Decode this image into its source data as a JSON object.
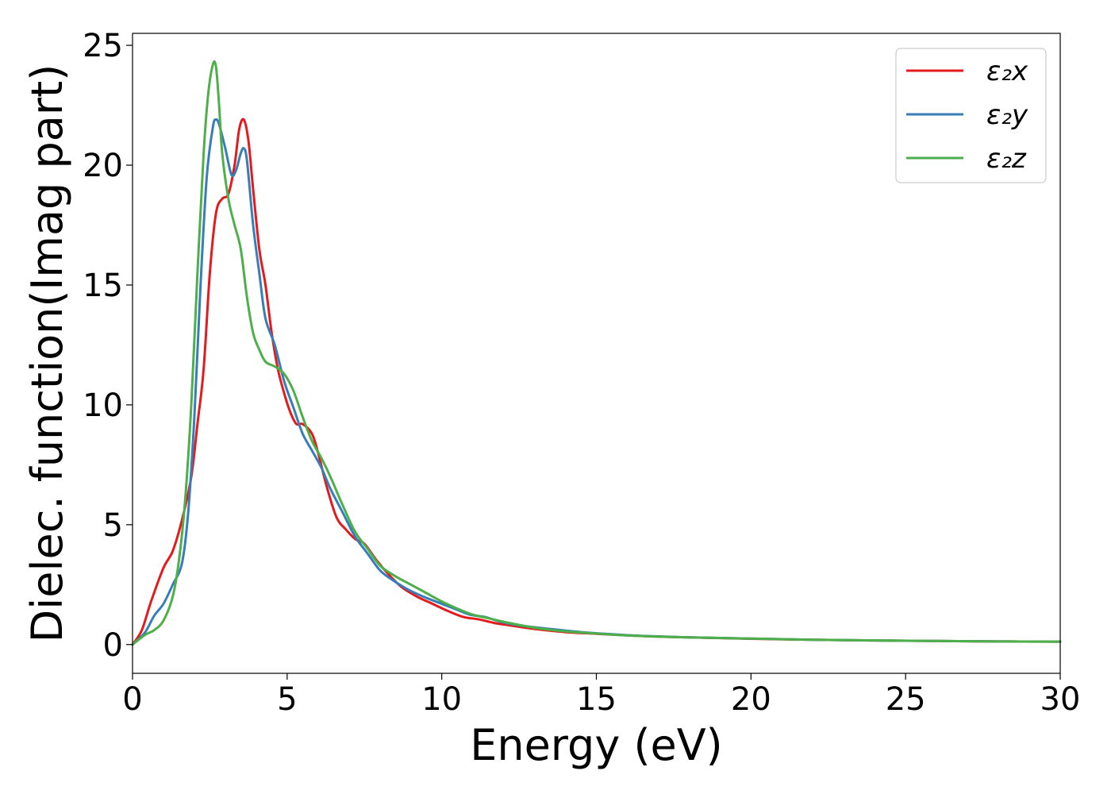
{
  "chart_data": {
    "type": "line",
    "title": "",
    "xlabel": "Energy (eV)",
    "ylabel": "Dielec. function(Imag part)",
    "xlim": [
      0,
      30
    ],
    "ylim": [
      -1.2,
      25.5
    ],
    "xticks": [
      0,
      5,
      10,
      15,
      20,
      25,
      30
    ],
    "yticks": [
      0,
      5,
      10,
      15,
      20,
      25
    ],
    "grid": false,
    "legend_position": "top-right",
    "series": [
      {
        "name": "ε₂x",
        "color": "#e41a1c",
        "x": [
          0,
          0.3,
          0.6,
          1.0,
          1.3,
          1.6,
          1.9,
          2.1,
          2.3,
          2.5,
          2.7,
          2.9,
          3.1,
          3.3,
          3.45,
          3.6,
          3.75,
          3.9,
          4.1,
          4.3,
          4.5,
          4.7,
          4.9,
          5.1,
          5.3,
          5.5,
          5.8,
          6.0,
          6.3,
          6.6,
          6.9,
          7.2,
          7.5,
          7.9,
          8.3,
          8.7,
          9.2,
          9.7,
          10.2,
          10.7,
          11.2,
          11.7,
          12.2,
          13.0,
          14.0,
          15.0,
          16.0,
          17.0,
          18.0,
          19.0,
          20.0,
          22.0,
          24.0,
          26.0,
          28.0,
          30.0
        ],
        "values": [
          0,
          0.6,
          1.8,
          3.2,
          3.9,
          5.2,
          7.0,
          9.2,
          11.5,
          15.5,
          18.0,
          18.6,
          18.8,
          20.0,
          21.5,
          21.9,
          21.0,
          19.0,
          16.5,
          15.0,
          13.0,
          11.5,
          10.5,
          9.7,
          9.2,
          9.2,
          8.8,
          8.0,
          6.5,
          5.3,
          4.8,
          4.4,
          4.2,
          3.5,
          2.9,
          2.4,
          2.0,
          1.7,
          1.4,
          1.15,
          1.05,
          0.9,
          0.8,
          0.65,
          0.52,
          0.45,
          0.38,
          0.33,
          0.3,
          0.27,
          0.24,
          0.2,
          0.17,
          0.15,
          0.13,
          0.12
        ]
      },
      {
        "name": "ε₂y",
        "color": "#377eb8",
        "x": [
          0,
          0.4,
          0.7,
          1.0,
          1.3,
          1.6,
          1.8,
          2.0,
          2.2,
          2.4,
          2.6,
          2.7,
          2.8,
          3.0,
          3.2,
          3.35,
          3.5,
          3.6,
          3.7,
          3.9,
          4.1,
          4.3,
          4.6,
          4.9,
          5.2,
          5.5,
          5.8,
          6.1,
          6.4,
          6.8,
          7.2,
          7.6,
          8.0,
          8.4,
          8.9,
          9.4,
          9.9,
          10.4,
          10.9,
          11.4,
          11.9,
          12.5,
          13.5,
          14.5,
          15.5,
          16.5,
          18.0,
          20.0,
          22.0,
          24.0,
          26.0,
          28.0,
          30.0
        ],
        "values": [
          0,
          0.5,
          1.2,
          1.7,
          2.5,
          3.4,
          5.5,
          9.5,
          15.0,
          19.5,
          21.6,
          21.9,
          21.7,
          20.7,
          19.6,
          19.8,
          20.5,
          20.7,
          20.2,
          17.5,
          15.5,
          13.6,
          12.5,
          11.0,
          9.9,
          8.8,
          8.1,
          7.4,
          6.5,
          5.5,
          4.5,
          3.8,
          3.1,
          2.7,
          2.3,
          2.0,
          1.75,
          1.5,
          1.25,
          1.15,
          0.95,
          0.8,
          0.65,
          0.52,
          0.43,
          0.36,
          0.3,
          0.25,
          0.2,
          0.17,
          0.15,
          0.13,
          0.12
        ]
      },
      {
        "name": "ε₂z",
        "color": "#4daf4a",
        "x": [
          0,
          0.4,
          0.7,
          1.0,
          1.3,
          1.5,
          1.7,
          1.9,
          2.1,
          2.3,
          2.45,
          2.6,
          2.7,
          2.8,
          2.9,
          3.1,
          3.3,
          3.5,
          3.7,
          3.9,
          4.1,
          4.3,
          4.6,
          4.9,
          5.2,
          5.5,
          5.8,
          6.1,
          6.4,
          6.8,
          7.2,
          7.6,
          8.0,
          8.5,
          9.0,
          9.5,
          10.0,
          10.5,
          11.0,
          11.5,
          12.0,
          13.0,
          14.0,
          15.0,
          16.0,
          17.0,
          18.0,
          20.0,
          22.0,
          24.0,
          26.0,
          28.0,
          30.0
        ],
        "values": [
          0,
          0.4,
          0.6,
          1.0,
          2.0,
          3.5,
          6.0,
          10.0,
          15.5,
          20.5,
          23.0,
          24.2,
          24.1,
          22.5,
          20.5,
          18.6,
          17.5,
          16.5,
          14.5,
          13.0,
          12.3,
          11.8,
          11.6,
          11.3,
          10.6,
          9.5,
          8.5,
          7.8,
          7.0,
          5.8,
          4.7,
          4.0,
          3.3,
          2.85,
          2.5,
          2.15,
          1.8,
          1.5,
          1.25,
          1.1,
          0.95,
          0.7,
          0.55,
          0.46,
          0.38,
          0.33,
          0.3,
          0.25,
          0.2,
          0.17,
          0.15,
          0.13,
          0.12
        ]
      }
    ]
  }
}
